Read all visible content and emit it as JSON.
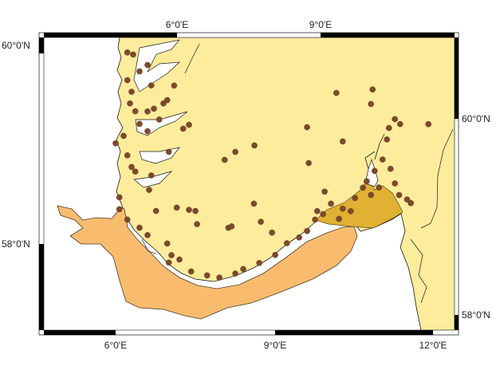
{
  "map": {
    "axes": {
      "top": [
        "6°0'E",
        "9°0'E"
      ],
      "bottom": [
        "6°0'E",
        "9°0'E",
        "12°0'E"
      ],
      "left": [
        "60°0'N",
        "58°0'N"
      ],
      "right": [
        "60°0'N",
        "58°0'N"
      ]
    },
    "colors": {
      "land": "#FCEC9C",
      "sea": "#FFFFFF",
      "offshore_zone": "#F9BC6F",
      "fjord_zone": "#E1B133",
      "points": "#7D4A2B",
      "coastline": "#1a1a1a"
    },
    "points_lonlat": [
      [
        6.22,
        60.08
      ],
      [
        6.33,
        60.07
      ],
      [
        6.45,
        59.91
      ],
      [
        6.6,
        59.99
      ],
      [
        6.22,
        59.8
      ],
      [
        6.3,
        59.69
      ],
      [
        6.27,
        59.57
      ],
      [
        6.37,
        59.5
      ],
      [
        6.45,
        59.38
      ],
      [
        6.6,
        59.52
      ],
      [
        6.67,
        59.79
      ],
      [
        6.72,
        59.56
      ],
      [
        6.82,
        59.46
      ],
      [
        6.6,
        59.32
      ],
      [
        6.9,
        59.63
      ],
      [
        6.97,
        59.67
      ],
      [
        7.38,
        59.46
      ],
      [
        7.1,
        59.83
      ],
      [
        7.0,
        59.15
      ],
      [
        6.0,
        59.14
      ],
      [
        6.15,
        59.23
      ],
      [
        6.22,
        59.04
      ],
      [
        6.3,
        58.93
      ],
      [
        6.37,
        58.89
      ],
      [
        6.67,
        58.88
      ],
      [
        6.63,
        58.73
      ],
      [
        6.07,
        58.6
      ],
      [
        6.07,
        58.48
      ],
      [
        7.27,
        59.41
      ],
      [
        8.25,
        59.27
      ],
      [
        8.05,
        59.17
      ],
      [
        8.61,
        59.37
      ],
      [
        9.6,
        59.65
      ],
      [
        9.63,
        59.29
      ],
      [
        10.15,
        60.05
      ],
      [
        10.27,
        59.57
      ],
      [
        10.8,
        60.0
      ],
      [
        10.83,
        60.15
      ],
      [
        11.35,
        59.85
      ],
      [
        11.88,
        59.9
      ],
      [
        11.17,
        59.38
      ],
      [
        6.76,
        58.53
      ],
      [
        7.15,
        58.6
      ],
      [
        7.38,
        58.6
      ],
      [
        7.5,
        58.6
      ],
      [
        7.53,
        58.47
      ],
      [
        8.12,
        58.49
      ],
      [
        8.18,
        58.51
      ],
      [
        8.73,
        58.61
      ],
      [
        8.94,
        58.52
      ],
      [
        8.6,
        58.78
      ],
      [
        6.22,
        58.39
      ],
      [
        6.45,
        58.33
      ],
      [
        6.6,
        58.27
      ],
      [
        6.97,
        58.22
      ],
      [
        7.05,
        58.11
      ],
      [
        7.0,
        58.03
      ],
      [
        7.2,
        58.08
      ],
      [
        7.42,
        57.98
      ],
      [
        7.72,
        57.97
      ],
      [
        7.95,
        57.97
      ],
      [
        8.25,
        58.04
      ],
      [
        8.4,
        58.1
      ],
      [
        8.7,
        58.19
      ],
      [
        9.0,
        58.3
      ],
      [
        9.22,
        58.44
      ],
      [
        9.45,
        58.52
      ],
      [
        9.6,
        58.6
      ],
      [
        9.75,
        58.73
      ],
      [
        9.79,
        58.82
      ],
      [
        9.93,
        59.03
      ],
      [
        10.05,
        58.92
      ],
      [
        10.27,
        58.89
      ],
      [
        10.5,
        59.02
      ],
      [
        10.65,
        59.14
      ],
      [
        10.72,
        59.21
      ],
      [
        10.87,
        59.33
      ],
      [
        11.02,
        59.46
      ],
      [
        11.1,
        59.67
      ],
      [
        11.14,
        59.79
      ],
      [
        11.25,
        59.89
      ],
      [
        11.25,
        59.24
      ],
      [
        11.33,
        59.13
      ],
      [
        11.48,
        59.1
      ],
      [
        11.55,
        59.07
      ],
      [
        10.95,
        59.17
      ],
      [
        10.8,
        59.08
      ],
      [
        10.42,
        58.88
      ],
      [
        10.2,
        58.78
      ],
      [
        9.9,
        58.8
      ]
    ]
  }
}
